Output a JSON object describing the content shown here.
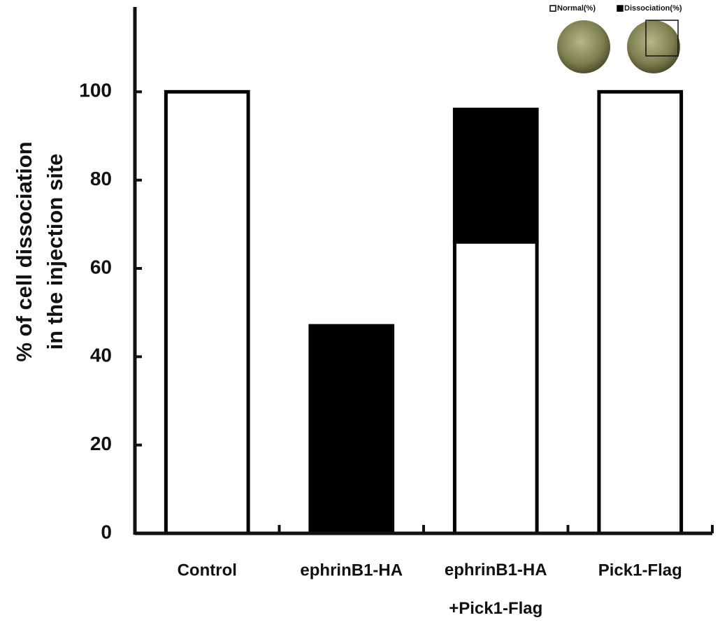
{
  "chart_data": {
    "type": "stacked_bar",
    "y_label": "% of cell dissociation\nin the injection site",
    "categories": [
      "Control",
      "ephrinB1-HA",
      "ephrinB1-HA\n+Pick1-Flag",
      "Pick1-Flag"
    ],
    "series": [
      {
        "name": "Normal(%)",
        "color": "#ffffff",
        "values": [
          100,
          0,
          66,
          100
        ]
      },
      {
        "name": "Dissociation(%)",
        "color": "#000000",
        "values": [
          0,
          47,
          30,
          0
        ]
      }
    ],
    "ylim": [
      0,
      120
    ],
    "yticks": [
      0,
      20,
      40,
      60,
      80,
      100
    ],
    "grid": false
  }
}
